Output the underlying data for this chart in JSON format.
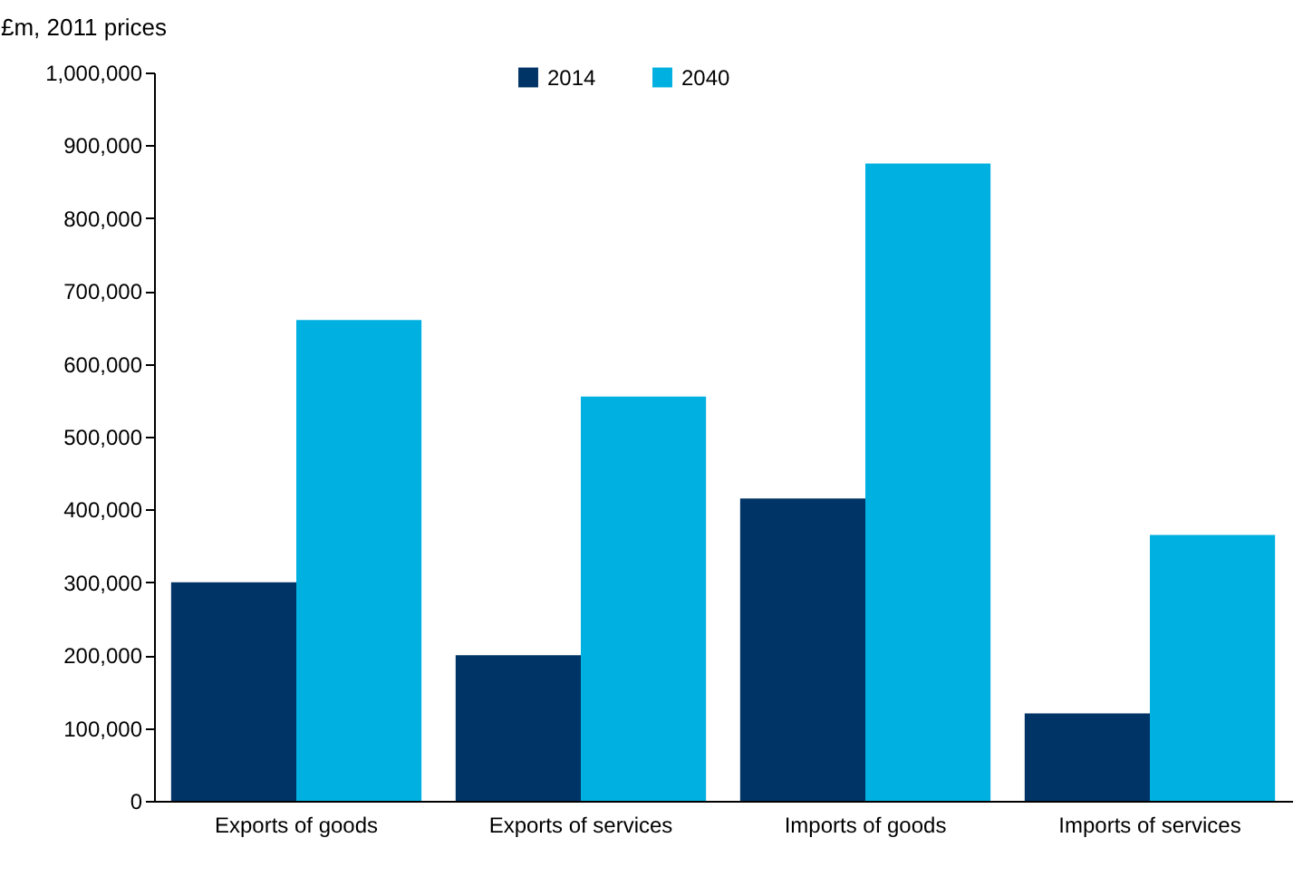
{
  "chart_data": {
    "type": "bar",
    "ylabel": "£m, 2011 prices",
    "categories": [
      "Exports of goods",
      "Exports of services",
      "Imports of goods",
      "Imports of services"
    ],
    "series": [
      {
        "name": "2014",
        "color": "#003366",
        "values": [
          300000,
          200000,
          415000,
          120000
        ]
      },
      {
        "name": "2040",
        "color": "#00b0e0",
        "values": [
          660000,
          555000,
          875000,
          365000
        ]
      }
    ],
    "ylim": [
      0,
      1000000
    ],
    "yticks": [
      0,
      {
        "value": 100000,
        "label": "100,000"
      },
      {
        "value": 200000,
        "label": "200,000"
      },
      {
        "value": 300000,
        "label": "300,000"
      },
      {
        "value": 400000,
        "label": "400,000"
      },
      {
        "value": 500000,
        "label": "500,000"
      },
      {
        "value": 600000,
        "label": "600,000"
      },
      {
        "value": 700000,
        "label": "700,000"
      },
      {
        "value": 800000,
        "label": "800,000"
      },
      {
        "value": 900000,
        "label": "900,000"
      },
      {
        "value": 1000000,
        "label": "1,000,000"
      }
    ],
    "grid": false,
    "legend": "top"
  }
}
